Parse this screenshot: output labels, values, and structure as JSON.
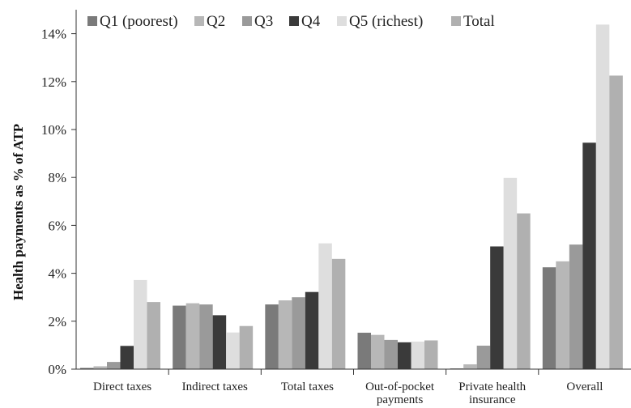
{
  "chart_data": {
    "type": "bar",
    "ylabel": "Health payments as % of ATP",
    "xlabel": "",
    "ylim": [
      0,
      15
    ],
    "yticks": [
      "0%",
      "2%",
      "4%",
      "6%",
      "8%",
      "10%",
      "12%",
      "14%"
    ],
    "grid": false,
    "legend_position": "top",
    "categories": [
      [
        "Direct taxes"
      ],
      [
        "Indirect taxes"
      ],
      [
        "Total taxes"
      ],
      [
        "Out-of-pocket",
        "payments"
      ],
      [
        "Private health",
        "insurance"
      ],
      [
        "Overall"
      ]
    ],
    "series": [
      {
        "name": "Q1 (poorest)",
        "color": "#7a7a7a",
        "values": [
          0.05,
          2.65,
          2.7,
          1.52,
          0.03,
          4.25
        ]
      },
      {
        "name": "Q2",
        "color": "#b7b7b7",
        "values": [
          0.12,
          2.75,
          2.87,
          1.43,
          0.2,
          4.5
        ]
      },
      {
        "name": "Q3",
        "color": "#9a9a9a",
        "values": [
          0.3,
          2.7,
          3.0,
          1.22,
          0.98,
          5.2
        ]
      },
      {
        "name": "Q4",
        "color": "#3a3a3a",
        "values": [
          0.97,
          2.25,
          3.22,
          1.12,
          5.12,
          9.45
        ]
      },
      {
        "name": "Q5 (richest)",
        "color": "#dedede",
        "values": [
          3.72,
          1.53,
          5.25,
          1.15,
          7.98,
          14.38
        ]
      },
      {
        "name": "Total",
        "color": "#b0b0b0",
        "values": [
          2.8,
          1.8,
          4.6,
          1.2,
          6.5,
          12.25
        ]
      }
    ]
  }
}
